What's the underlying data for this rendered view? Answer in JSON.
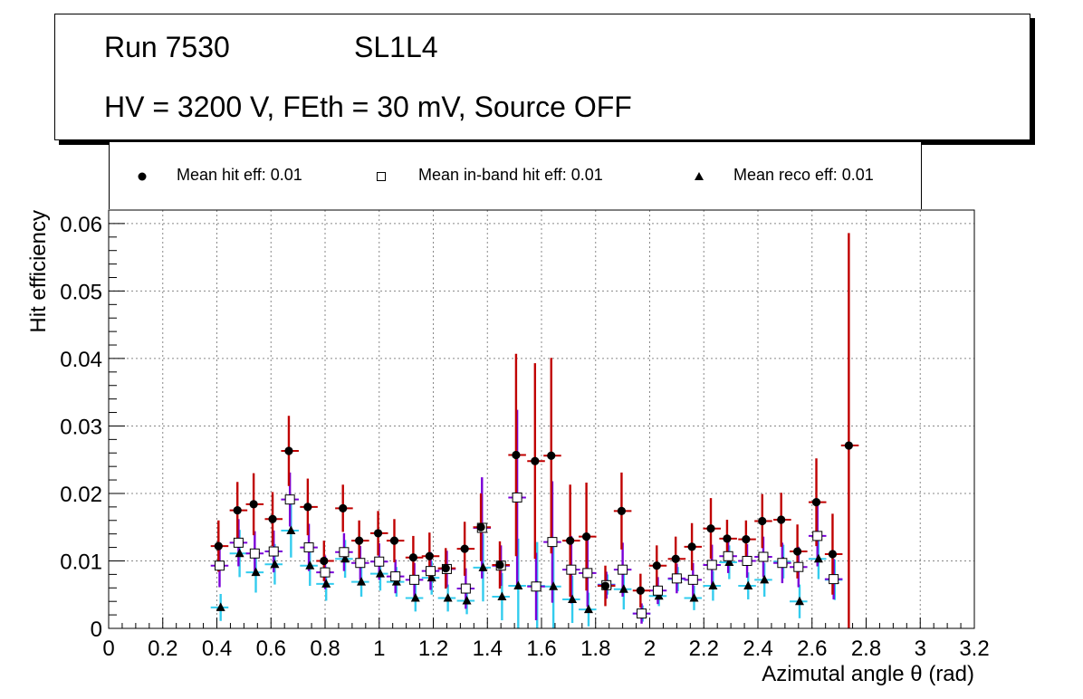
{
  "header": {
    "run": "Run 7530",
    "layer": "SL1L4",
    "conditions": "HV = 3200 V, FEth = 30 mV, Source OFF"
  },
  "legend": {
    "hit": "Mean hit  eff: 0.01",
    "inband": "Mean in-band hit eff: 0.01",
    "reco": "Mean reco eff: 0.01"
  },
  "colors": {
    "hit_err": "#c00000",
    "inband_err": "#7a00d8",
    "reco_err": "#33ccee",
    "inband_fill": "#ffffff",
    "grid": "#888888"
  },
  "chart_data": {
    "type": "scatter",
    "xlabel": "Azimutal angle θ (rad)",
    "ylabel": "Hit efficiency",
    "xlim": [
      0,
      3.2
    ],
    "ylim": [
      0,
      0.062
    ],
    "xticks": [
      0,
      0.2,
      0.4,
      0.6,
      0.8,
      1,
      1.2,
      1.4,
      1.6,
      1.8,
      2,
      2.2,
      2.4,
      2.6,
      2.8,
      3,
      3.2
    ],
    "xtick_labels": [
      "0",
      "0.2",
      "0.4",
      "0.6",
      "0.8",
      "1",
      "1.2",
      "1.4",
      "1.6",
      "1.8",
      "2",
      "2.2",
      "2.4",
      "2.6",
      "2.8",
      "3",
      "3.2"
    ],
    "yticks": [
      0,
      0.01,
      0.02,
      0.03,
      0.04,
      0.05,
      0.06
    ],
    "ytick_labels": [
      "0",
      "0.01",
      "0.02",
      "0.03",
      "0.04",
      "0.05",
      "0.06"
    ],
    "x_bin_halfwidth": 0.0327,
    "grid": true,
    "series": [
      {
        "name": "Mean hit  eff: 0.01",
        "marker": "circle",
        "x": [
          0.41,
          0.48,
          0.54,
          0.61,
          0.67,
          0.74,
          0.8,
          0.87,
          0.93,
          1.0,
          1.06,
          1.13,
          1.19,
          1.25,
          1.32,
          1.38,
          1.45,
          1.51,
          1.58,
          1.64,
          1.71,
          1.77,
          1.84,
          1.9,
          1.97,
          2.03,
          2.1,
          2.16,
          2.23,
          2.29,
          2.36,
          2.42,
          2.49,
          2.55,
          2.62,
          2.68,
          2.74
        ],
        "y": [
          0.0122,
          0.0175,
          0.0184,
          0.0162,
          0.0263,
          0.018,
          0.01,
          0.0178,
          0.013,
          0.0141,
          0.013,
          0.0105,
          0.0107,
          0.0089,
          0.0118,
          0.015,
          0.0094,
          0.0257,
          0.0248,
          0.0256,
          0.013,
          0.0136,
          0.0063,
          0.0174,
          0.0056,
          0.0093,
          0.0103,
          0.0121,
          0.0148,
          0.0133,
          0.0132,
          0.0159,
          0.0161,
          0.0114,
          0.0187,
          0.011,
          0.0271
        ],
        "err": [
          0.0038,
          0.0042,
          0.0046,
          0.004,
          0.0052,
          0.0042,
          0.003,
          0.0035,
          0.003,
          0.0033,
          0.0032,
          0.0032,
          0.0035,
          0.003,
          0.004,
          0.005,
          0.0035,
          0.015,
          0.0145,
          0.0145,
          0.0083,
          0.008,
          0.003,
          0.0057,
          0.0025,
          0.003,
          0.0033,
          0.0035,
          0.0045,
          0.0028,
          0.0028,
          0.004,
          0.004,
          0.004,
          0.0065,
          0.006,
          0.0315
        ]
      },
      {
        "name": "Mean in-band hit eff: 0.01",
        "marker": "open-square",
        "x": [
          0.41,
          0.48,
          0.54,
          0.61,
          0.67,
          0.74,
          0.8,
          0.87,
          0.93,
          1.0,
          1.06,
          1.13,
          1.19,
          1.25,
          1.32,
          1.38,
          1.45,
          1.51,
          1.58,
          1.64,
          1.71,
          1.77,
          1.84,
          1.9,
          1.97,
          2.03,
          2.1,
          2.16,
          2.23,
          2.29,
          2.36,
          2.42,
          2.49,
          2.55,
          2.62,
          2.68
        ],
        "y": [
          0.0093,
          0.0127,
          0.0111,
          0.0114,
          0.0191,
          0.012,
          0.0083,
          0.0113,
          0.0097,
          0.0099,
          0.0077,
          0.0072,
          0.0085,
          0.0088,
          0.0059,
          0.0149,
          0.0093,
          0.0194,
          0.0062,
          0.0128,
          0.0087,
          0.0082,
          0.0064,
          0.0087,
          0.0022,
          0.0056,
          0.0074,
          0.0072,
          0.0094,
          0.0107,
          0.01,
          0.0106,
          0.0097,
          0.0091,
          0.0137,
          0.0073
        ],
        "err": [
          0.0032,
          0.0035,
          0.0033,
          0.0031,
          0.004,
          0.0035,
          0.0025,
          0.0028,
          0.0025,
          0.0027,
          0.0025,
          0.0025,
          0.0028,
          0.0027,
          0.003,
          0.0075,
          0.003,
          0.013,
          0.005,
          0.009,
          0.005,
          0.005,
          0.002,
          0.004,
          0.0015,
          0.002,
          0.0022,
          0.0025,
          0.003,
          0.0025,
          0.0025,
          0.003,
          0.003,
          0.003,
          0.0045,
          0.003
        ]
      },
      {
        "name": "Mean reco eff: 0.01",
        "marker": "triangle",
        "x": [
          0.41,
          0.48,
          0.54,
          0.61,
          0.67,
          0.74,
          0.8,
          0.87,
          0.93,
          1.0,
          1.06,
          1.13,
          1.19,
          1.25,
          1.32,
          1.38,
          1.45,
          1.51,
          1.58,
          1.64,
          1.71,
          1.77,
          1.84,
          1.9,
          1.97,
          2.03,
          2.1,
          2.16,
          2.23,
          2.29,
          2.36,
          2.42,
          2.49,
          2.55,
          2.62,
          2.68
        ],
        "y": [
          0.0031,
          0.0111,
          0.0083,
          0.0095,
          0.0145,
          0.0093,
          0.0066,
          0.0103,
          0.0069,
          0.0081,
          0.0069,
          0.0045,
          0.0075,
          0.0045,
          0.0041,
          0.009,
          0.0047,
          0.0063,
          0.0063,
          0.0062,
          0.0043,
          0.0028,
          0.0065,
          0.0058,
          0.0022,
          0.0048,
          0.0073,
          0.0045,
          0.0063,
          0.0098,
          0.0063,
          0.0072,
          0.0099,
          0.004,
          0.0103,
          0.0072
        ],
        "err": [
          0.002,
          0.0035,
          0.003,
          0.003,
          0.004,
          0.003,
          0.0025,
          0.0028,
          0.0022,
          0.0025,
          0.0022,
          0.002,
          0.0025,
          0.002,
          0.002,
          0.005,
          0.0035,
          0.007,
          0.0065,
          0.0065,
          0.0035,
          0.0025,
          0.0015,
          0.003,
          0.0012,
          0.0015,
          0.0018,
          0.0018,
          0.0022,
          0.0025,
          0.002,
          0.0025,
          0.0025,
          0.0025,
          0.003,
          0.003
        ]
      }
    ]
  }
}
